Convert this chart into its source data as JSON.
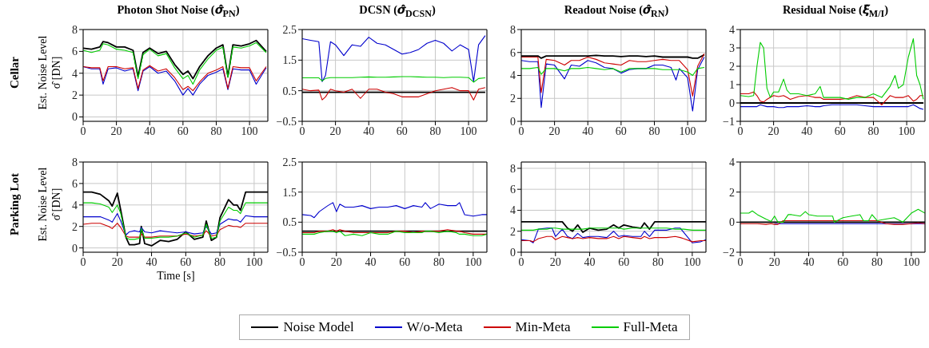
{
  "chart_data": [
    {
      "type": "line",
      "title": "Photon Shot Noise (𝝈̂$_{PN}$)",
      "ylabel": "Est. Noise Level σ̂ [DN]",
      "annotations": [
        "Cellar"
      ],
      "legend": "bottom",
      "grid": true,
      "xlim": [
        0,
        111
      ],
      "xticks": [
        0,
        20,
        40,
        60,
        80,
        100
      ],
      "ylim": [
        -0.4,
        8
      ],
      "yticks": [
        0,
        2,
        4,
        6,
        8
      ],
      "x": [
        0,
        5,
        10,
        12,
        15,
        20,
        25,
        30,
        33,
        36,
        40,
        45,
        50,
        55,
        60,
        63,
        66,
        70,
        75,
        80,
        84,
        87,
        90,
        95,
        100,
        104,
        110
      ],
      "series": [
        {
          "name": "Noise Model",
          "color": "#000000",
          "values": [
            6.3,
            6.2,
            6.4,
            6.9,
            6.8,
            6.4,
            6.4,
            6.1,
            3.7,
            5.9,
            6.3,
            5.8,
            6.0,
            4.8,
            3.9,
            4.2,
            3.5,
            4.6,
            5.6,
            6.3,
            6.6,
            3.7,
            6.6,
            6.5,
            6.7,
            7.0,
            6.0
          ]
        },
        {
          "name": "W/o-Meta",
          "color": "#0000cc",
          "values": [
            4.6,
            4.4,
            4.4,
            3.0,
            4.4,
            4.5,
            4.2,
            4.4,
            2.4,
            4.2,
            4.6,
            4.0,
            4.2,
            3.3,
            2.0,
            2.6,
            2.0,
            3.0,
            3.8,
            4.1,
            4.4,
            2.5,
            4.4,
            4.3,
            4.3,
            3.0,
            4.5
          ]
        },
        {
          "name": "Min-Meta",
          "color": "#cc0000",
          "values": [
            4.6,
            4.5,
            4.5,
            3.3,
            4.6,
            4.6,
            4.4,
            4.5,
            2.6,
            4.3,
            4.7,
            4.2,
            4.4,
            3.6,
            2.5,
            2.8,
            2.4,
            3.2,
            4.0,
            4.3,
            4.6,
            2.6,
            4.6,
            4.5,
            4.5,
            3.3,
            4.6
          ]
        },
        {
          "name": "Full-Meta",
          "color": "#00cc00",
          "values": [
            6.1,
            5.9,
            6.1,
            6.7,
            6.6,
            6.2,
            6.1,
            5.9,
            3.5,
            5.7,
            6.2,
            5.6,
            5.8,
            4.5,
            3.5,
            3.8,
            3.0,
            4.3,
            5.3,
            6.1,
            6.4,
            3.6,
            6.4,
            6.3,
            6.5,
            6.8,
            5.9
          ]
        }
      ]
    },
    {
      "type": "line",
      "title": "DCSN (𝝈̂$_{DCSN}$)",
      "grid": true,
      "xlim": [
        0,
        111
      ],
      "xticks": [
        0,
        20,
        40,
        60,
        80,
        100
      ],
      "ylim": [
        -0.5,
        2.5
      ],
      "yticks": [
        -0.5,
        0.5,
        1.5,
        2.5
      ],
      "x": [
        0,
        5,
        10,
        12,
        14,
        17,
        20,
        25,
        30,
        35,
        40,
        45,
        50,
        55,
        60,
        65,
        70,
        75,
        80,
        85,
        90,
        95,
        100,
        103,
        106,
        110
      ],
      "series": [
        {
          "color": "#000000",
          "values": [
            0.45,
            0.45,
            0.45,
            0.45,
            0.45,
            0.45,
            0.45,
            0.45,
            0.45,
            0.45,
            0.45,
            0.45,
            0.45,
            0.45,
            0.45,
            0.45,
            0.45,
            0.45,
            0.45,
            0.45,
            0.45,
            0.45,
            0.45,
            0.45,
            0.45,
            0.45
          ]
        },
        {
          "color": "#0000cc",
          "values": [
            2.2,
            2.15,
            2.1,
            0.8,
            1.0,
            2.1,
            2.0,
            1.65,
            2.0,
            1.95,
            2.25,
            2.05,
            2.0,
            1.85,
            1.7,
            1.75,
            1.85,
            2.05,
            2.15,
            2.05,
            1.8,
            2.0,
            1.85,
            0.8,
            2.0,
            2.3
          ]
        },
        {
          "color": "#cc0000",
          "values": [
            0.55,
            0.5,
            0.52,
            0.2,
            0.3,
            0.55,
            0.5,
            0.45,
            0.55,
            0.25,
            0.55,
            0.55,
            0.45,
            0.4,
            0.3,
            0.3,
            0.3,
            0.4,
            0.5,
            0.55,
            0.6,
            0.5,
            0.5,
            0.2,
            0.55,
            0.6
          ]
        },
        {
          "color": "#00cc00",
          "values": [
            0.92,
            0.92,
            0.92,
            0.82,
            0.9,
            0.93,
            0.93,
            0.93,
            0.93,
            0.94,
            0.95,
            0.94,
            0.94,
            0.95,
            0.96,
            0.96,
            0.95,
            0.94,
            0.94,
            0.93,
            0.94,
            0.94,
            0.93,
            0.78,
            0.9,
            0.92
          ]
        }
      ]
    },
    {
      "type": "line",
      "title": "Readout Noise (𝝈̂$_{RN}$)",
      "grid": true,
      "xlim": [
        0,
        111
      ],
      "xticks": [
        0,
        20,
        40,
        60,
        80,
        100
      ],
      "ylim": [
        0,
        8
      ],
      "yticks": [
        0,
        2,
        4,
        6,
        8
      ],
      "x": [
        0,
        5,
        10,
        12,
        15,
        20,
        26,
        30,
        35,
        40,
        45,
        50,
        55,
        60,
        65,
        70,
        75,
        80,
        85,
        90,
        93,
        95,
        100,
        103,
        106,
        110
      ],
      "series": [
        {
          "color": "#000000",
          "values": [
            5.7,
            5.7,
            5.7,
            5.5,
            5.7,
            5.7,
            5.7,
            5.7,
            5.7,
            5.7,
            5.75,
            5.7,
            5.7,
            5.65,
            5.7,
            5.7,
            5.65,
            5.7,
            5.6,
            5.6,
            5.6,
            5.6,
            5.6,
            5.5,
            5.5,
            5.8
          ]
        },
        {
          "color": "#0000cc",
          "values": [
            5.3,
            5.2,
            5.2,
            1.2,
            5.0,
            4.9,
            3.7,
            4.9,
            4.8,
            5.3,
            5.1,
            4.7,
            4.6,
            4.2,
            4.5,
            4.6,
            4.6,
            4.9,
            4.9,
            4.7,
            3.6,
            4.6,
            3.8,
            0.9,
            4.5,
            5.6
          ]
        },
        {
          "color": "#cc0000",
          "values": [
            5.6,
            5.6,
            5.6,
            2.5,
            5.4,
            5.3,
            4.9,
            5.3,
            5.3,
            5.6,
            5.4,
            5.1,
            5.0,
            4.9,
            5.3,
            5.2,
            5.2,
            5.3,
            5.4,
            5.3,
            5.3,
            5.3,
            4.5,
            2.2,
            4.8,
            5.9
          ]
        },
        {
          "color": "#00cc00",
          "values": [
            4.6,
            4.6,
            4.7,
            4.1,
            4.6,
            4.6,
            4.4,
            4.6,
            4.6,
            4.7,
            4.6,
            4.5,
            4.6,
            4.3,
            4.6,
            4.6,
            4.6,
            4.6,
            4.5,
            4.5,
            4.5,
            4.5,
            4.3,
            4.0,
            4.6,
            4.7
          ]
        }
      ]
    },
    {
      "type": "line",
      "title": "Residual Noise (𝝃̂$_{M/I}$)",
      "grid": true,
      "xlim": [
        0,
        111
      ],
      "xticks": [
        0,
        20,
        40,
        60,
        80,
        100
      ],
      "ylim": [
        -1,
        4
      ],
      "yticks": [
        -1,
        0,
        1,
        2,
        3,
        4
      ],
      "x": [
        0,
        5,
        8,
        10,
        12,
        14,
        16,
        18,
        20,
        23,
        26,
        28,
        30,
        35,
        40,
        45,
        48,
        50,
        55,
        60,
        65,
        70,
        75,
        80,
        85,
        90,
        93,
        95,
        98,
        101,
        104,
        106,
        108,
        110
      ],
      "series": [
        {
          "color": "#000000",
          "values": [
            0,
            0,
            0,
            0,
            0,
            0,
            0,
            0,
            0,
            0,
            0,
            0,
            0,
            0,
            0,
            0,
            0,
            0,
            0,
            0,
            0,
            0,
            0,
            0,
            0,
            0,
            0,
            0,
            0,
            0,
            0,
            0,
            0,
            0
          ]
        },
        {
          "color": "#0000cc",
          "values": [
            -0.2,
            -0.2,
            -0.2,
            -0.2,
            -0.1,
            -0.15,
            -0.2,
            -0.2,
            -0.2,
            -0.25,
            -0.25,
            -0.2,
            -0.2,
            -0.2,
            -0.15,
            -0.2,
            -0.2,
            -0.15,
            -0.1,
            -0.1,
            -0.1,
            -0.1,
            -0.15,
            -0.2,
            -0.2,
            -0.2,
            -0.2,
            -0.2,
            -0.2,
            -0.2,
            -0.1,
            -0.2,
            -0.3,
            -0.35
          ]
        },
        {
          "color": "#cc0000",
          "values": [
            0.5,
            0.5,
            0.6,
            0.4,
            0.1,
            0.05,
            0.2,
            0.3,
            0.4,
            0.35,
            0.4,
            0.3,
            0.2,
            0.35,
            0.4,
            0.3,
            0.3,
            0.2,
            0.2,
            0.2,
            0.25,
            0.4,
            0.3,
            0.3,
            -0.1,
            0.4,
            0.3,
            0.3,
            0.3,
            0.4,
            0.1,
            0.2,
            0.4,
            0.4
          ]
        },
        {
          "color": "#00cc00",
          "values": [
            0.4,
            0.35,
            0.4,
            2.0,
            3.3,
            3.0,
            0.8,
            0.3,
            0.6,
            0.6,
            1.3,
            0.7,
            0.5,
            0.5,
            0.4,
            0.5,
            0.9,
            0.3,
            0.3,
            0.3,
            0.2,
            0.3,
            0.3,
            0.5,
            0.3,
            0.9,
            1.5,
            0.8,
            1.0,
            2.5,
            3.5,
            1.5,
            1.0,
            0.2
          ]
        }
      ]
    },
    {
      "type": "line",
      "xlabel": "Time [s]",
      "ylabel": "Est. Noise Level σ̂ [DN]",
      "annotations": [
        "Parking Lot"
      ],
      "grid": true,
      "xlim": [
        0,
        108
      ],
      "xticks": [
        0,
        20,
        40,
        60,
        80,
        100
      ],
      "ylim": [
        -0.4,
        8
      ],
      "yticks": [
        0,
        2,
        4,
        6,
        8
      ],
      "x": [
        0,
        5,
        10,
        15,
        17,
        20,
        22,
        25,
        27,
        30,
        33,
        34,
        36,
        40,
        45,
        50,
        55,
        60,
        65,
        70,
        72,
        75,
        78,
        80,
        85,
        88,
        90,
        92,
        95,
        100,
        108
      ],
      "series": [
        {
          "color": "#000000",
          "values": [
            5.2,
            5.2,
            5.0,
            4.4,
            3.9,
            5.1,
            3.5,
            1.0,
            0.3,
            0.3,
            0.4,
            2.0,
            0.4,
            0.2,
            0.7,
            0.6,
            0.8,
            1.5,
            0.8,
            1.0,
            2.5,
            0.7,
            1.0,
            2.8,
            4.5,
            4.0,
            4.0,
            3.5,
            5.2,
            5.2,
            5.2
          ]
        },
        {
          "color": "#0000cc",
          "values": [
            2.9,
            2.9,
            2.9,
            2.6,
            2.4,
            3.2,
            2.5,
            1.2,
            1.5,
            1.6,
            1.5,
            1.9,
            1.5,
            1.4,
            1.6,
            1.5,
            1.4,
            1.5,
            1.3,
            1.4,
            2.0,
            1.3,
            1.4,
            2.2,
            2.7,
            2.6,
            2.6,
            2.4,
            3.0,
            2.9,
            2.9
          ]
        },
        {
          "color": "#cc0000",
          "values": [
            2.2,
            2.3,
            2.3,
            2.0,
            1.8,
            2.3,
            1.9,
            1.1,
            1.0,
            1.0,
            1.0,
            1.3,
            1.0,
            1.0,
            1.1,
            1.1,
            1.1,
            1.3,
            1.1,
            1.2,
            1.6,
            1.1,
            1.2,
            1.7,
            2.1,
            2.0,
            2.0,
            1.9,
            2.3,
            2.3,
            2.3
          ]
        },
        {
          "color": "#00cc00",
          "values": [
            4.2,
            4.2,
            4.1,
            3.8,
            3.3,
            4.0,
            3.2,
            1.0,
            0.8,
            0.8,
            0.9,
            1.8,
            0.9,
            0.9,
            1.0,
            1.0,
            1.1,
            1.4,
            1.0,
            1.2,
            2.2,
            0.9,
            1.0,
            2.5,
            3.8,
            3.5,
            3.5,
            3.2,
            4.2,
            4.2,
            4.2
          ]
        }
      ]
    },
    {
      "type": "line",
      "grid": true,
      "xlim": [
        0,
        108
      ],
      "xticks": [
        0,
        20,
        40,
        60,
        80,
        100
      ],
      "ylim": [
        -0.5,
        2.5
      ],
      "yticks": [
        -0.5,
        0.5,
        1.5,
        2.5
      ],
      "x": [
        0,
        5,
        7,
        10,
        15,
        18,
        20,
        22,
        25,
        30,
        35,
        40,
        45,
        50,
        55,
        60,
        65,
        70,
        72,
        75,
        80,
        85,
        90,
        92,
        95,
        100,
        105,
        108
      ],
      "series": [
        {
          "color": "#000000",
          "values": [
            0.2,
            0.2,
            0.2,
            0.2,
            0.2,
            0.2,
            0.2,
            0.2,
            0.2,
            0.2,
            0.2,
            0.2,
            0.2,
            0.2,
            0.2,
            0.2,
            0.2,
            0.2,
            0.2,
            0.2,
            0.2,
            0.2,
            0.2,
            0.2,
            0.2,
            0.2,
            0.2,
            0.2
          ]
        },
        {
          "color": "#0000cc",
          "values": [
            0.75,
            0.72,
            0.65,
            0.85,
            1.05,
            1.15,
            0.85,
            1.1,
            1.0,
            1.0,
            1.05,
            0.95,
            1.0,
            1.0,
            1.05,
            0.95,
            1.05,
            1.0,
            1.15,
            0.95,
            1.1,
            1.05,
            1.05,
            1.15,
            0.75,
            0.7,
            0.75,
            0.75
          ]
        },
        {
          "color": "#cc0000",
          "values": [
            0.15,
            0.15,
            0.15,
            0.2,
            0.2,
            0.25,
            0.2,
            0.25,
            0.2,
            0.15,
            0.15,
            0.15,
            0.15,
            0.15,
            0.2,
            0.2,
            0.15,
            0.2,
            0.2,
            0.2,
            0.2,
            0.25,
            0.2,
            0.2,
            0.15,
            0.1,
            0.1,
            0.1
          ]
        },
        {
          "color": "#00cc00",
          "values": [
            0.1,
            0.1,
            0.1,
            0.15,
            0.2,
            0.2,
            0.15,
            0.2,
            0.05,
            0.1,
            0.05,
            0.15,
            0.1,
            0.1,
            0.2,
            0.15,
            0.15,
            0.15,
            0.2,
            0.2,
            0.15,
            0.2,
            0.15,
            0.1,
            0.1,
            0.05,
            0.05,
            0.1
          ]
        }
      ]
    },
    {
      "type": "line",
      "grid": true,
      "xlim": [
        0,
        108
      ],
      "xticks": [
        0,
        20,
        40,
        60,
        80,
        100
      ],
      "ylim": [
        0,
        8.6
      ],
      "yticks": [
        0,
        2,
        4,
        6,
        8
      ],
      "x": [
        0,
        5,
        7,
        10,
        15,
        18,
        20,
        24,
        27,
        30,
        33,
        36,
        40,
        45,
        50,
        54,
        57,
        60,
        65,
        70,
        72,
        75,
        78,
        80,
        85,
        90,
        93,
        95,
        100,
        105,
        108
      ],
      "series": [
        {
          "color": "#000000",
          "values": [
            2.9,
            2.9,
            2.9,
            2.9,
            2.9,
            2.9,
            2.9,
            2.9,
            2.3,
            2.0,
            2.6,
            1.9,
            2.3,
            2.1,
            2.2,
            2.6,
            2.3,
            2.6,
            2.4,
            2.3,
            2.8,
            2.2,
            2.9,
            2.9,
            2.9,
            2.9,
            2.9,
            2.9,
            2.9,
            2.9,
            2.9
          ]
        },
        {
          "color": "#0000cc",
          "values": [
            1.2,
            1.1,
            0.9,
            2.2,
            2.3,
            2.3,
            1.5,
            2.2,
            1.5,
            1.3,
            1.8,
            1.4,
            1.5,
            1.5,
            1.4,
            2.0,
            1.5,
            1.6,
            1.5,
            1.5,
            2.0,
            1.5,
            2.1,
            2.1,
            2.1,
            2.3,
            2.3,
            1.9,
            0.9,
            1.0,
            1.2
          ]
        },
        {
          "color": "#cc0000",
          "values": [
            1.1,
            1.1,
            1.0,
            1.3,
            1.5,
            1.5,
            1.2,
            1.5,
            1.4,
            1.3,
            1.4,
            1.3,
            1.4,
            1.3,
            1.3,
            1.5,
            1.3,
            1.5,
            1.4,
            1.3,
            1.5,
            1.3,
            1.4,
            1.4,
            1.4,
            1.5,
            1.4,
            1.3,
            1.0,
            1.1,
            1.1
          ]
        },
        {
          "color": "#00cc00",
          "values": [
            2.1,
            2.1,
            2.1,
            2.2,
            2.2,
            2.3,
            2.3,
            2.2,
            2.2,
            2.2,
            2.2,
            2.2,
            2.3,
            2.3,
            2.3,
            2.3,
            2.3,
            2.2,
            2.3,
            2.3,
            2.3,
            2.3,
            2.3,
            2.3,
            2.3,
            2.2,
            2.2,
            2.2,
            2.1,
            2.1,
            2.1
          ]
        }
      ]
    },
    {
      "type": "line",
      "grid": true,
      "xlim": [
        0,
        108
      ],
      "xticks": [
        0,
        20,
        40,
        60,
        80,
        100
      ],
      "ylim": [
        -2,
        4
      ],
      "yticks": [
        -2,
        0,
        2,
        4
      ],
      "x": [
        0,
        5,
        7,
        10,
        15,
        18,
        20,
        22,
        25,
        28,
        30,
        35,
        38,
        40,
        45,
        50,
        54,
        55,
        60,
        65,
        70,
        72,
        75,
        77,
        80,
        85,
        90,
        95,
        100,
        104,
        108
      ],
      "series": [
        {
          "color": "#000000",
          "values": [
            0,
            0,
            0,
            0,
            0,
            0,
            0,
            0,
            0,
            0,
            0,
            0,
            0,
            0,
            0,
            0,
            0,
            0,
            0,
            0,
            0,
            0,
            0,
            0,
            0,
            0,
            0,
            0,
            0,
            0,
            0
          ]
        },
        {
          "color": "#0000cc",
          "values": [
            null,
            null,
            null,
            null,
            null,
            null,
            -0.1,
            -0.1,
            -0.1,
            -0.1,
            -0.1,
            -0.1,
            -0.1,
            -0.1,
            -0.1,
            -0.1,
            -0.1,
            -0.1,
            -0.1,
            -0.1,
            -0.1,
            -0.1,
            -0.1,
            -0.1,
            -0.1,
            -0.1,
            -0.1,
            -0.1,
            -0.1,
            -0.1,
            -0.1
          ]
        },
        {
          "color": "#cc0000",
          "values": [
            -0.1,
            -0.1,
            -0.1,
            -0.1,
            -0.15,
            -0.1,
            -0.15,
            -0.15,
            0.1,
            0.1,
            0.1,
            0.1,
            0.1,
            0.1,
            0.1,
            0.1,
            0.1,
            0.1,
            0.1,
            0.1,
            0.1,
            0.1,
            0.1,
            0.1,
            0.1,
            -0.1,
            -0.15,
            -0.15,
            -0.1,
            -0.05,
            -0.1
          ]
        },
        {
          "color": "#00cc00",
          "values": [
            0.6,
            0.6,
            0.75,
            0.5,
            0.2,
            0.05,
            0.4,
            0,
            0,
            0.5,
            0.5,
            0.4,
            0.7,
            0.5,
            0.4,
            0.4,
            0.4,
            0,
            0.3,
            0.4,
            0.5,
            0.1,
            0.1,
            0.5,
            0.1,
            0.2,
            0.3,
            0,
            0.6,
            0.85,
            0.6
          ]
        }
      ]
    }
  ]
}
